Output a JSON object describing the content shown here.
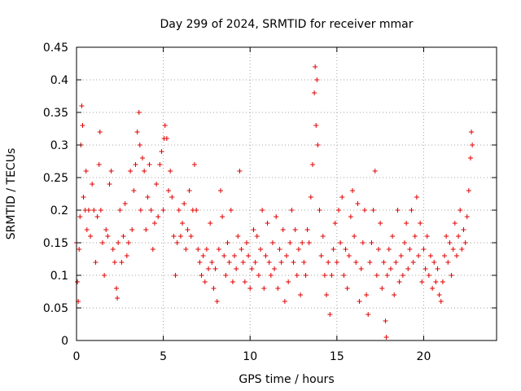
{
  "chart_data": {
    "type": "scatter",
    "title": "Day 299 of 2024, SRMTID for receiver mmar",
    "xlabel": "GPS time / hours",
    "ylabel": "SRMTID / TECUs",
    "xlim": [
      0,
      24.2
    ],
    "ylim": [
      0,
      0.45
    ],
    "xticks": [
      0,
      5,
      10,
      15,
      20
    ],
    "xtick_labels": [
      "0",
      "5",
      "10",
      "15",
      "20"
    ],
    "yticks": [
      0,
      0.05,
      0.1,
      0.15,
      0.2,
      0.25,
      0.3,
      0.35,
      0.4,
      0.45
    ],
    "ytick_labels": [
      "0",
      "0.05",
      "0.1",
      "0.15",
      "0.2",
      "0.25",
      "0.3",
      "0.35",
      "0.4",
      "0.45"
    ],
    "grid": true,
    "marker": "+",
    "marker_color": "#e00000",
    "series": [
      {
        "name": "SRMTID",
        "points": [
          [
            0.0,
            0.15
          ],
          [
            0.05,
            0.09
          ],
          [
            0.1,
            0.06
          ],
          [
            0.15,
            0.14
          ],
          [
            0.2,
            0.19
          ],
          [
            0.25,
            0.3
          ],
          [
            0.3,
            0.36
          ],
          [
            0.35,
            0.33
          ],
          [
            0.4,
            0.22
          ],
          [
            0.5,
            0.2
          ],
          [
            0.55,
            0.26
          ],
          [
            0.6,
            0.17
          ],
          [
            0.7,
            0.2
          ],
          [
            0.8,
            0.16
          ],
          [
            0.9,
            0.24
          ],
          [
            1.0,
            0.2
          ],
          [
            1.1,
            0.12
          ],
          [
            1.2,
            0.19
          ],
          [
            1.3,
            0.27
          ],
          [
            1.35,
            0.32
          ],
          [
            1.4,
            0.2
          ],
          [
            1.5,
            0.15
          ],
          [
            1.6,
            0.1
          ],
          [
            1.7,
            0.17
          ],
          [
            1.8,
            0.16
          ],
          [
            1.9,
            0.24
          ],
          [
            2.0,
            0.26
          ],
          [
            2.1,
            0.14
          ],
          [
            2.2,
            0.12
          ],
          [
            2.3,
            0.08
          ],
          [
            2.35,
            0.065
          ],
          [
            2.4,
            0.15
          ],
          [
            2.5,
            0.2
          ],
          [
            2.6,
            0.12
          ],
          [
            2.7,
            0.16
          ],
          [
            2.8,
            0.21
          ],
          [
            2.9,
            0.13
          ],
          [
            3.0,
            0.15
          ],
          [
            3.1,
            0.26
          ],
          [
            3.2,
            0.17
          ],
          [
            3.3,
            0.23
          ],
          [
            3.4,
            0.27
          ],
          [
            3.5,
            0.32
          ],
          [
            3.6,
            0.35
          ],
          [
            3.65,
            0.3
          ],
          [
            3.7,
            0.2
          ],
          [
            3.8,
            0.28
          ],
          [
            3.9,
            0.26
          ],
          [
            4.0,
            0.17
          ],
          [
            4.1,
            0.22
          ],
          [
            4.2,
            0.27
          ],
          [
            4.3,
            0.2
          ],
          [
            4.4,
            0.14
          ],
          [
            4.5,
            0.18
          ],
          [
            4.6,
            0.24
          ],
          [
            4.7,
            0.19
          ],
          [
            4.8,
            0.27
          ],
          [
            4.9,
            0.29
          ],
          [
            5.0,
            0.2
          ],
          [
            5.05,
            0.31
          ],
          [
            5.1,
            0.33
          ],
          [
            5.2,
            0.31
          ],
          [
            5.3,
            0.23
          ],
          [
            5.4,
            0.26
          ],
          [
            5.5,
            0.22
          ],
          [
            5.6,
            0.16
          ],
          [
            5.7,
            0.1
          ],
          [
            5.8,
            0.15
          ],
          [
            5.9,
            0.2
          ],
          [
            6.0,
            0.16
          ],
          [
            6.1,
            0.18
          ],
          [
            6.2,
            0.21
          ],
          [
            6.3,
            0.14
          ],
          [
            6.4,
            0.17
          ],
          [
            6.5,
            0.23
          ],
          [
            6.6,
            0.16
          ],
          [
            6.7,
            0.2
          ],
          [
            6.8,
            0.27
          ],
          [
            6.9,
            0.2
          ],
          [
            7.0,
            0.14
          ],
          [
            7.1,
            0.12
          ],
          [
            7.2,
            0.1
          ],
          [
            7.3,
            0.13
          ],
          [
            7.4,
            0.09
          ],
          [
            7.5,
            0.14
          ],
          [
            7.6,
            0.11
          ],
          [
            7.7,
            0.18
          ],
          [
            7.8,
            0.12
          ],
          [
            7.9,
            0.08
          ],
          [
            8.0,
            0.11
          ],
          [
            8.1,
            0.06
          ],
          [
            8.2,
            0.14
          ],
          [
            8.3,
            0.23
          ],
          [
            8.4,
            0.19
          ],
          [
            8.5,
            0.13
          ],
          [
            8.6,
            0.1
          ],
          [
            8.7,
            0.15
          ],
          [
            8.8,
            0.12
          ],
          [
            8.9,
            0.2
          ],
          [
            9.0,
            0.09
          ],
          [
            9.1,
            0.13
          ],
          [
            9.2,
            0.11
          ],
          [
            9.3,
            0.16
          ],
          [
            9.4,
            0.26
          ],
          [
            9.5,
            0.14
          ],
          [
            9.6,
            0.12
          ],
          [
            9.7,
            0.09
          ],
          [
            9.8,
            0.15
          ],
          [
            9.9,
            0.13
          ],
          [
            10.0,
            0.08
          ],
          [
            10.1,
            0.11
          ],
          [
            10.2,
            0.17
          ],
          [
            10.3,
            0.12
          ],
          [
            10.4,
            0.16
          ],
          [
            10.5,
            0.1
          ],
          [
            10.6,
            0.14
          ],
          [
            10.7,
            0.2
          ],
          [
            10.8,
            0.08
          ],
          [
            10.9,
            0.13
          ],
          [
            11.0,
            0.18
          ],
          [
            11.1,
            0.12
          ],
          [
            11.2,
            0.1
          ],
          [
            11.3,
            0.15
          ],
          [
            11.4,
            0.11
          ],
          [
            11.5,
            0.19
          ],
          [
            11.6,
            0.08
          ],
          [
            11.7,
            0.14
          ],
          [
            11.8,
            0.12
          ],
          [
            11.9,
            0.17
          ],
          [
            12.0,
            0.06
          ],
          [
            12.1,
            0.13
          ],
          [
            12.2,
            0.09
          ],
          [
            12.3,
            0.15
          ],
          [
            12.4,
            0.2
          ],
          [
            12.5,
            0.12
          ],
          [
            12.6,
            0.17
          ],
          [
            12.7,
            0.1
          ],
          [
            12.8,
            0.14
          ],
          [
            12.9,
            0.07
          ],
          [
            13.0,
            0.15
          ],
          [
            13.1,
            0.12
          ],
          [
            13.2,
            0.1
          ],
          [
            13.3,
            0.17
          ],
          [
            13.4,
            0.15
          ],
          [
            13.5,
            0.22
          ],
          [
            13.6,
            0.27
          ],
          [
            13.7,
            0.38
          ],
          [
            13.75,
            0.42
          ],
          [
            13.8,
            0.33
          ],
          [
            13.85,
            0.4
          ],
          [
            13.9,
            0.3
          ],
          [
            14.0,
            0.2
          ],
          [
            14.1,
            0.13
          ],
          [
            14.2,
            0.16
          ],
          [
            14.3,
            0.1
          ],
          [
            14.4,
            0.07
          ],
          [
            14.5,
            0.12
          ],
          [
            14.6,
            0.04
          ],
          [
            14.7,
            0.1
          ],
          [
            14.8,
            0.14
          ],
          [
            14.9,
            0.18
          ],
          [
            15.0,
            0.12
          ],
          [
            15.1,
            0.2
          ],
          [
            15.2,
            0.15
          ],
          [
            15.3,
            0.22
          ],
          [
            15.4,
            0.1
          ],
          [
            15.5,
            0.14
          ],
          [
            15.6,
            0.08
          ],
          [
            15.7,
            0.13
          ],
          [
            15.8,
            0.19
          ],
          [
            15.9,
            0.23
          ],
          [
            16.0,
            0.16
          ],
          [
            16.1,
            0.12
          ],
          [
            16.2,
            0.21
          ],
          [
            16.3,
            0.06
          ],
          [
            16.4,
            0.11
          ],
          [
            16.5,
            0.15
          ],
          [
            16.6,
            0.2
          ],
          [
            16.7,
            0.07
          ],
          [
            16.8,
            0.04
          ],
          [
            16.9,
            0.12
          ],
          [
            17.0,
            0.15
          ],
          [
            17.1,
            0.2
          ],
          [
            17.2,
            0.26
          ],
          [
            17.3,
            0.1
          ],
          [
            17.4,
            0.14
          ],
          [
            17.5,
            0.18
          ],
          [
            17.6,
            0.08
          ],
          [
            17.7,
            0.12
          ],
          [
            17.8,
            0.03
          ],
          [
            17.85,
            0.005
          ],
          [
            17.9,
            0.1
          ],
          [
            18.0,
            0.14
          ],
          [
            18.1,
            0.11
          ],
          [
            18.2,
            0.16
          ],
          [
            18.3,
            0.07
          ],
          [
            18.4,
            0.12
          ],
          [
            18.5,
            0.2
          ],
          [
            18.6,
            0.09
          ],
          [
            18.7,
            0.13
          ],
          [
            18.8,
            0.1
          ],
          [
            18.9,
            0.15
          ],
          [
            19.0,
            0.18
          ],
          [
            19.1,
            0.11
          ],
          [
            19.2,
            0.14
          ],
          [
            19.3,
            0.2
          ],
          [
            19.4,
            0.12
          ],
          [
            19.5,
            0.16
          ],
          [
            19.6,
            0.22
          ],
          [
            19.7,
            0.13
          ],
          [
            19.8,
            0.18
          ],
          [
            19.9,
            0.09
          ],
          [
            20.0,
            0.14
          ],
          [
            20.1,
            0.11
          ],
          [
            20.2,
            0.16
          ],
          [
            20.3,
            0.1
          ],
          [
            20.4,
            0.13
          ],
          [
            20.5,
            0.08
          ],
          [
            20.6,
            0.12
          ],
          [
            20.7,
            0.09
          ],
          [
            20.8,
            0.11
          ],
          [
            20.9,
            0.07
          ],
          [
            21.0,
            0.06
          ],
          [
            21.1,
            0.09
          ],
          [
            21.2,
            0.13
          ],
          [
            21.3,
            0.16
          ],
          [
            21.4,
            0.12
          ],
          [
            21.5,
            0.15
          ],
          [
            21.6,
            0.1
          ],
          [
            21.7,
            0.14
          ],
          [
            21.8,
            0.18
          ],
          [
            21.9,
            0.13
          ],
          [
            22.0,
            0.16
          ],
          [
            22.1,
            0.2
          ],
          [
            22.2,
            0.14
          ],
          [
            22.3,
            0.17
          ],
          [
            22.4,
            0.15
          ],
          [
            22.5,
            0.19
          ],
          [
            22.6,
            0.23
          ],
          [
            22.7,
            0.28
          ],
          [
            22.75,
            0.32
          ],
          [
            22.8,
            0.3
          ]
        ]
      }
    ]
  }
}
